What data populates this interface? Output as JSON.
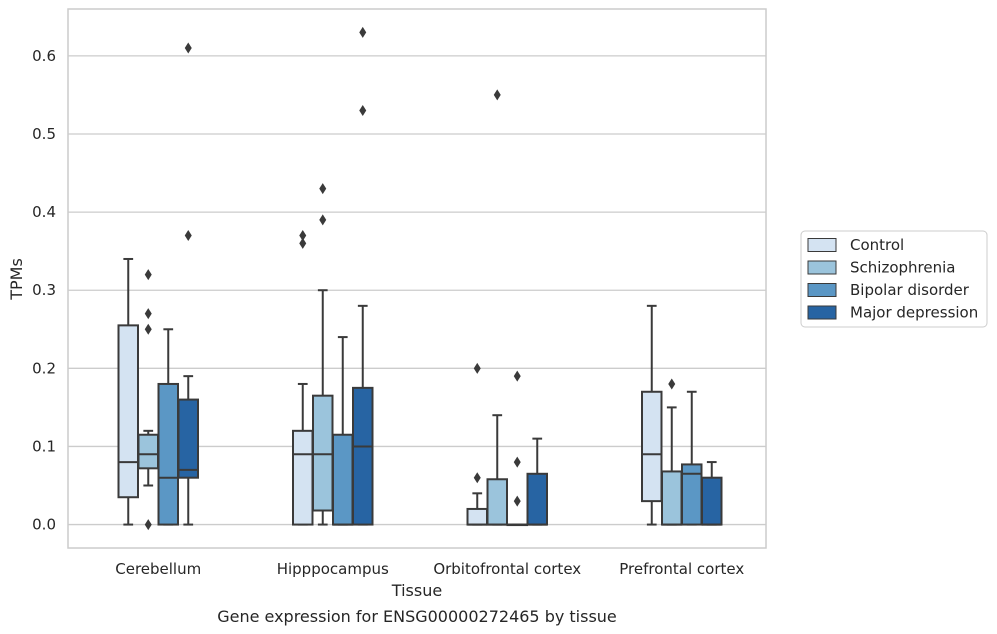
{
  "caption": "Gene expression for ENSG00000272465 by tissue",
  "chart_data": {
    "type": "boxplot",
    "xlabel": "Tissue",
    "ylabel": "TPMs",
    "ylim": [
      -0.03,
      0.66
    ],
    "yticks": [
      0.0,
      0.1,
      0.2,
      0.3,
      0.4,
      0.5,
      0.6
    ],
    "ytick_labels": [
      "0.0",
      "0.1",
      "0.2",
      "0.3",
      "0.4",
      "0.5",
      "0.6"
    ],
    "grid": "horizontal",
    "legend_position": "outside-right",
    "categories": [
      "Cerebellum",
      "Hipppocampus",
      "Orbitofrontal cortex",
      "Prefrontal cortex"
    ],
    "series": [
      {
        "name": "Control",
        "color": "#d4e3f2",
        "boxes": [
          {
            "whislo": 0.0,
            "q1": 0.035,
            "med": 0.08,
            "q3": 0.255,
            "whishi": 0.34,
            "fliers": []
          },
          {
            "whislo": 0.0,
            "q1": 0.0,
            "med": 0.09,
            "q3": 0.12,
            "whishi": 0.18,
            "fliers": [
              0.36,
              0.37
            ]
          },
          {
            "whislo": 0.0,
            "q1": 0.0,
            "med": 0.0,
            "q3": 0.02,
            "whishi": 0.04,
            "fliers": [
              0.06,
              0.2
            ]
          },
          {
            "whislo": 0.0,
            "q1": 0.03,
            "med": 0.09,
            "q3": 0.17,
            "whishi": 0.28,
            "fliers": []
          }
        ]
      },
      {
        "name": "Schizophrenia",
        "color": "#9bc4dc",
        "boxes": [
          {
            "whislo": 0.05,
            "q1": 0.072,
            "med": 0.09,
            "q3": 0.115,
            "whishi": 0.12,
            "fliers": [
              0.0,
              0.25,
              0.27,
              0.32
            ]
          },
          {
            "whislo": 0.0,
            "q1": 0.018,
            "med": 0.09,
            "q3": 0.165,
            "whishi": 0.3,
            "fliers": [
              0.39,
              0.43
            ]
          },
          {
            "whislo": 0.0,
            "q1": 0.0,
            "med": 0.0,
            "q3": 0.058,
            "whishi": 0.14,
            "fliers": [
              0.55
            ]
          },
          {
            "whislo": 0.0,
            "q1": 0.0,
            "med": 0.0,
            "q3": 0.068,
            "whishi": 0.15,
            "fliers": [
              0.18
            ]
          }
        ]
      },
      {
        "name": "Bipolar disorder",
        "color": "#5b97c5",
        "boxes": [
          {
            "whislo": 0.0,
            "q1": 0.0,
            "med": 0.06,
            "q3": 0.18,
            "whishi": 0.25,
            "fliers": []
          },
          {
            "whislo": 0.0,
            "q1": 0.0,
            "med": 0.0,
            "q3": 0.115,
            "whishi": 0.24,
            "fliers": []
          },
          {
            "whislo": 0.0,
            "q1": 0.0,
            "med": 0.0,
            "q3": 0.0,
            "whishi": 0.0,
            "fliers": [
              0.03,
              0.08,
              0.19
            ]
          },
          {
            "whislo": 0.0,
            "q1": 0.0,
            "med": 0.065,
            "q3": 0.077,
            "whishi": 0.17,
            "fliers": []
          }
        ]
      },
      {
        "name": "Major depression",
        "color": "#2764a3",
        "boxes": [
          {
            "whislo": 0.0,
            "q1": 0.06,
            "med": 0.07,
            "q3": 0.16,
            "whishi": 0.19,
            "fliers": [
              0.37,
              0.61
            ]
          },
          {
            "whislo": 0.0,
            "q1": 0.0,
            "med": 0.1,
            "q3": 0.175,
            "whishi": 0.28,
            "fliers": [
              0.53,
              0.63
            ]
          },
          {
            "whislo": 0.0,
            "q1": 0.0,
            "med": 0.0,
            "q3": 0.065,
            "whishi": 0.11,
            "fliers": []
          },
          {
            "whislo": 0.0,
            "q1": 0.0,
            "med": 0.0,
            "q3": 0.06,
            "whishi": 0.08,
            "fliers": []
          }
        ]
      }
    ],
    "colors": {
      "box_edge": "#3a3a3a",
      "grid": "#cccccc",
      "frame": "#cccccc",
      "text": "#262626"
    }
  }
}
